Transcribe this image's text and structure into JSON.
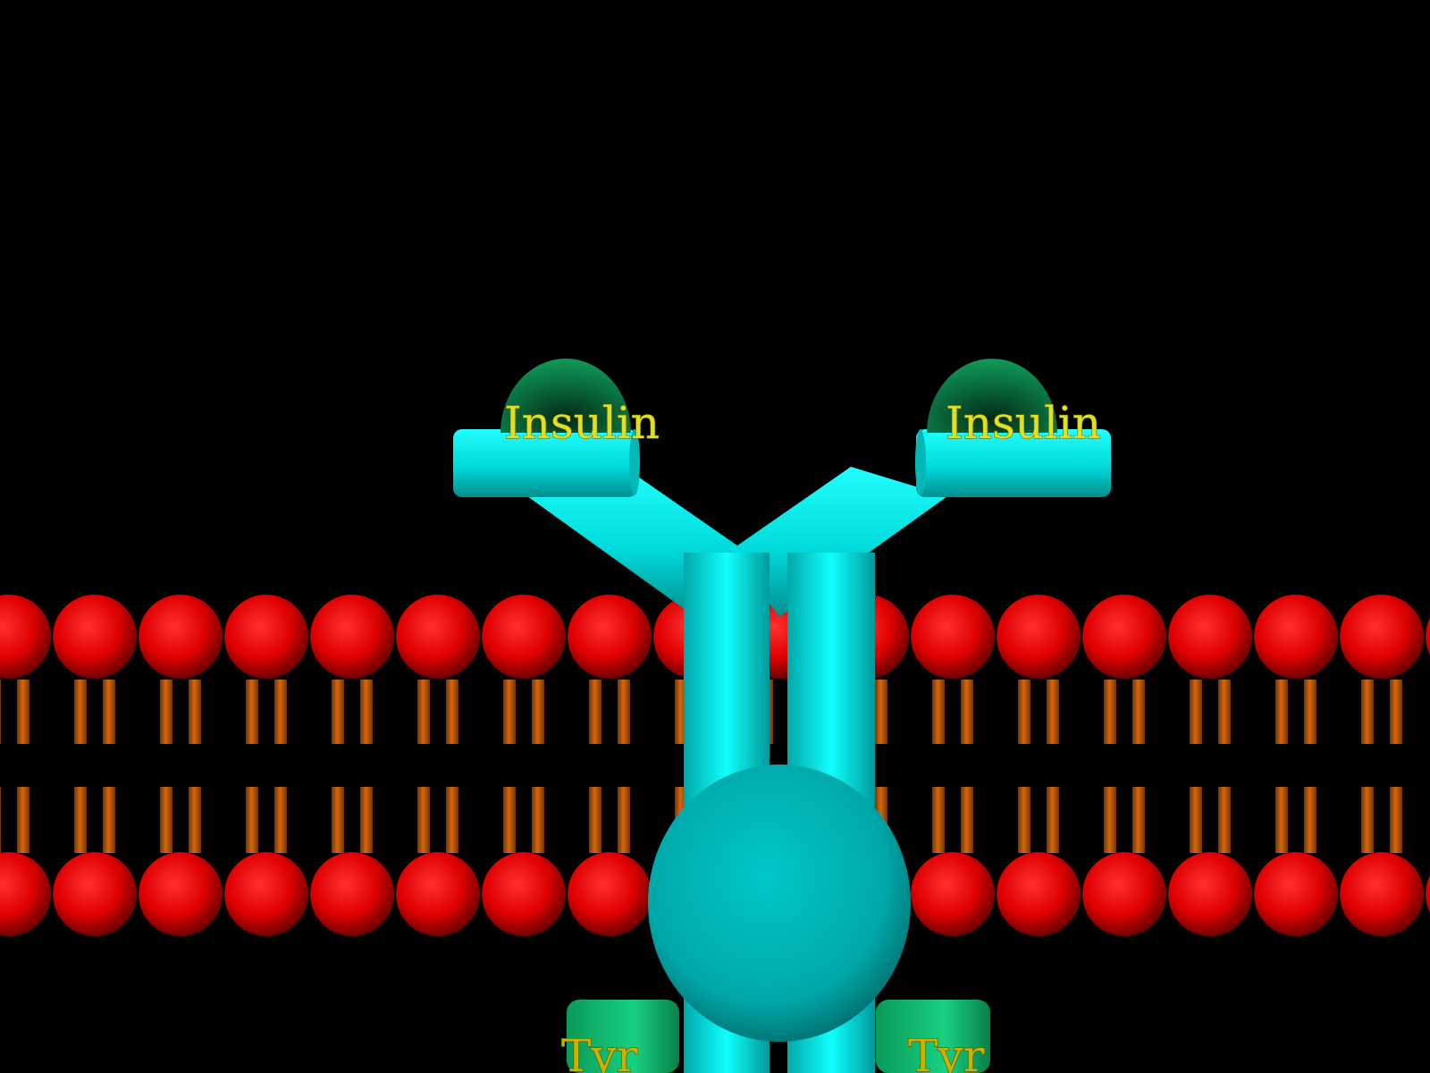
{
  "labels": {
    "insulin_left": "Insulin",
    "insulin_right": "Insulin",
    "tyr_left": "Tyr",
    "tyr_right": "Tyr"
  },
  "colors": {
    "background": "#000000",
    "lipid_head": "#ff1010",
    "lipid_tail": "#c85a00",
    "receptor": "#00e6e6",
    "insulin": "#0a8a4a",
    "kinase": "#10c070",
    "label_text": "#e0e020"
  },
  "icons": {
    "lipid_head": "red-sphere",
    "receptor": "cyan-y-shaped-receptor",
    "insulin": "green-hemisphere"
  }
}
